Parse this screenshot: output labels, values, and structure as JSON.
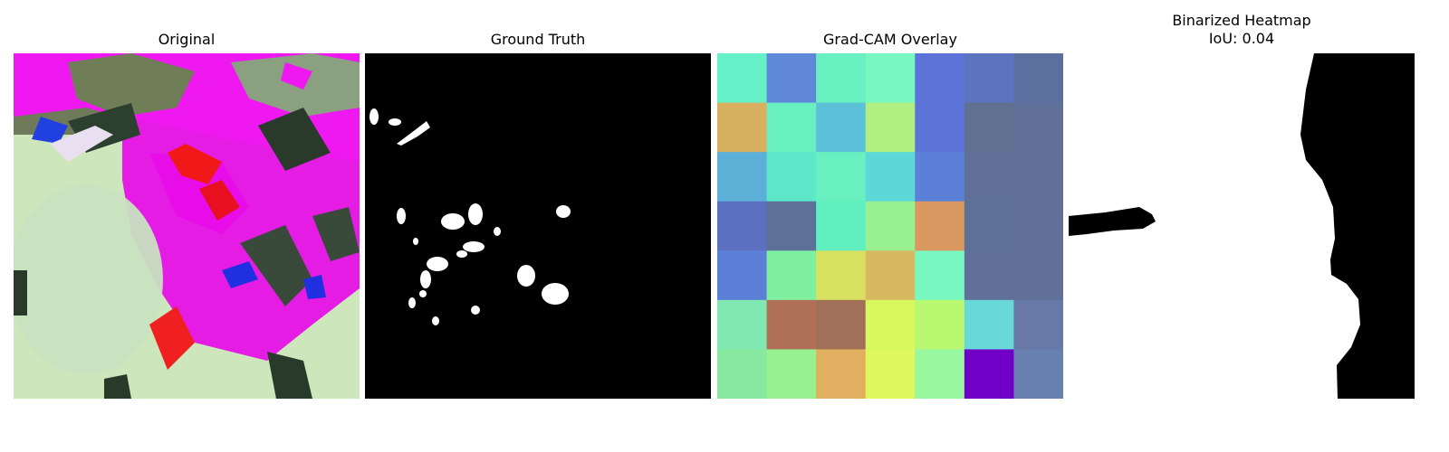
{
  "panels": [
    {
      "title": "Original"
    },
    {
      "title": "Ground Truth"
    },
    {
      "title": "Grad-CAM Overlay"
    },
    {
      "title": "Binarized Heatmap",
      "subtitle": "IoU: 0.04"
    }
  ],
  "gradcam": {
    "rows": 7,
    "cols": 7,
    "colors": [
      [
        "#65f0c8",
        "#6088d8",
        "#68f0c0",
        "#78f8c0",
        "#5c74d8",
        "#5c74c0",
        "#5c70a0"
      ],
      [
        "#d8b060",
        "#68f0c0",
        "#5cc0d8",
        "#b0f080",
        "#5c74d8",
        "#607090",
        "#607098"
      ],
      [
        "#5cb0d8",
        "#5ce8c8",
        "#68f0c0",
        "#5cd8d8",
        "#5c80d8",
        "#607098",
        "#607098"
      ],
      [
        "#5c70c0",
        "#5c7098",
        "#60f0c0",
        "#98f090",
        "#d89860",
        "#5c7098",
        "#607098"
      ],
      [
        "#5c80d8",
        "#80f0a0",
        "#d8e060",
        "#d8b860",
        "#78f8c0",
        "#607098",
        "#607098"
      ],
      [
        "#80e8b0",
        "#b07058",
        "#a07058",
        "#d8f860",
        "#b8f870",
        "#68d8d8",
        "#6878a8"
      ],
      [
        "#88e8a0",
        "#98f090",
        "#e0b060",
        "#e0f860",
        "#98f8a0",
        "#7000c8",
        "#6880b0"
      ]
    ]
  },
  "colors": {
    "background": "#ffffff",
    "mask_fg": "#ffffff",
    "mask_bg": "#000000",
    "magenta": "#f018f0",
    "red": "#f01818",
    "leaf_light": "#d0ecc0",
    "dark_green": "#2a3a2a"
  }
}
